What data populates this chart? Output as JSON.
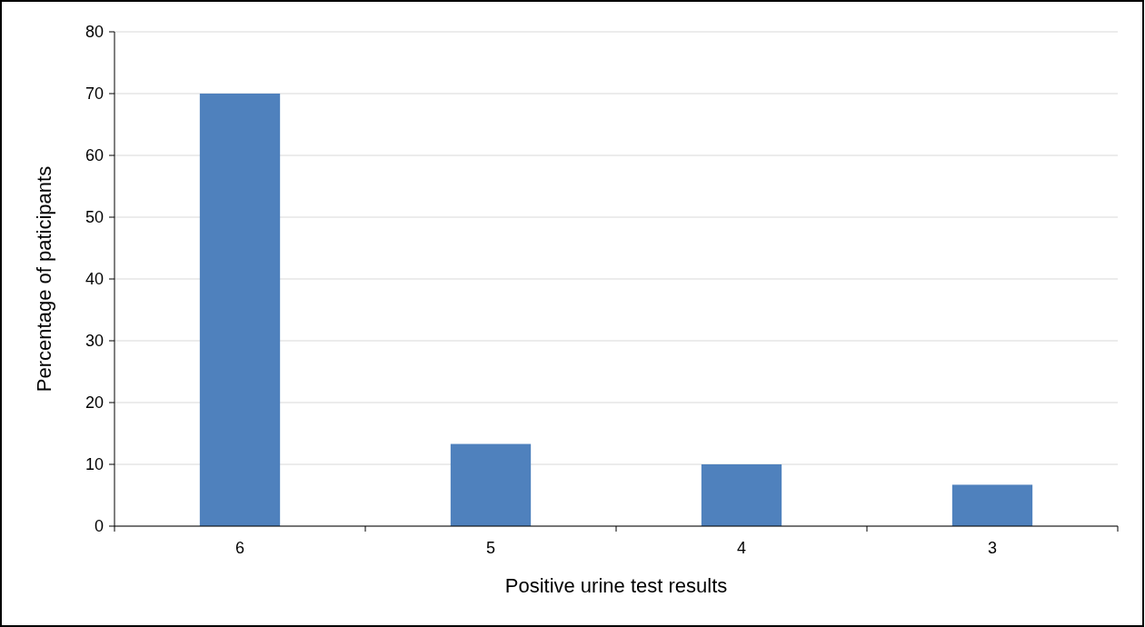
{
  "chart_data": {
    "type": "bar",
    "xlabel": "Positive urine test results",
    "ylabel": "Percentage of paticipants",
    "categories": [
      "6",
      "5",
      "4",
      "3"
    ],
    "values": [
      70,
      13.3,
      10,
      6.7
    ],
    "color": "#4f81bd",
    "ylim": [
      0,
      80
    ],
    "yticks": [
      0,
      10,
      20,
      30,
      40,
      50,
      60,
      70,
      80
    ],
    "grid": "y"
  }
}
